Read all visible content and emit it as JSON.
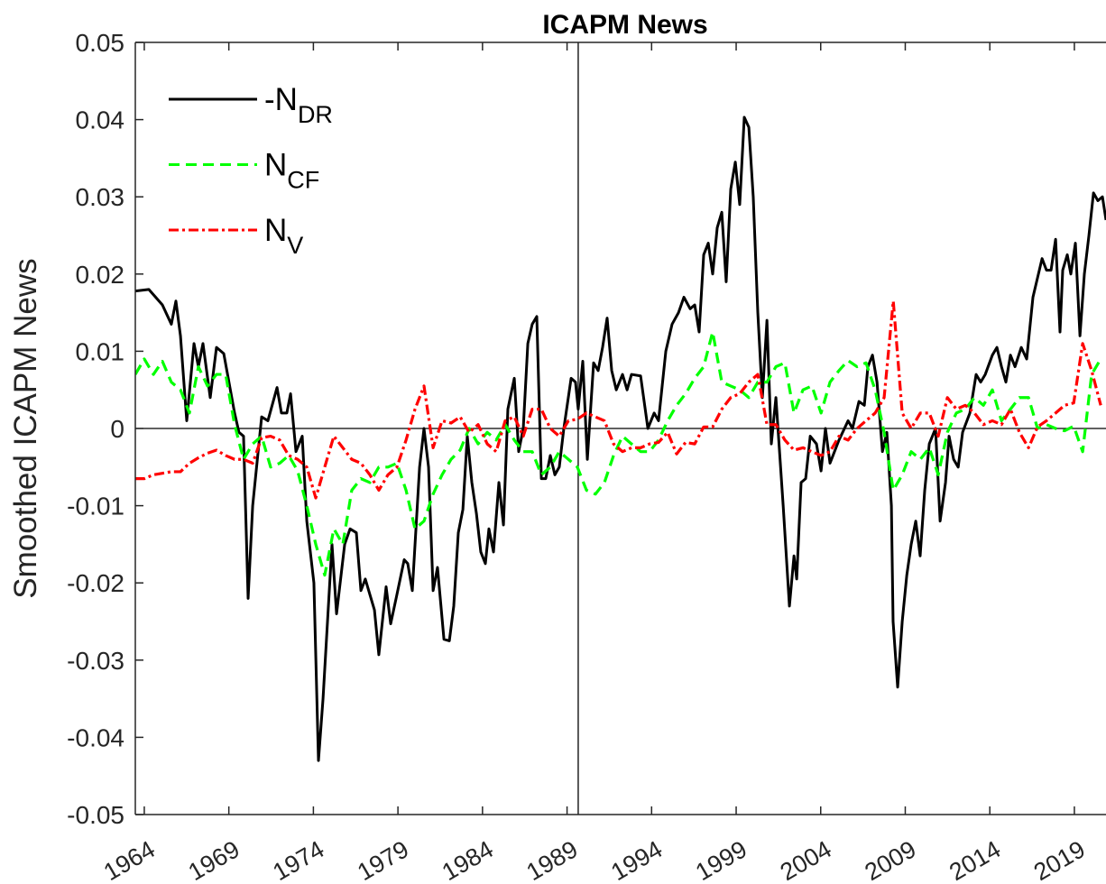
{
  "chart_data": {
    "type": "line",
    "title": "ICAPM News",
    "y_label": "Smoothed ICAPM News",
    "xlim": [
      1963.47,
      2020.87
    ],
    "xticks": [
      1964,
      1969,
      1974,
      1979,
      1984,
      1989,
      1994,
      1999,
      2004,
      2009,
      2014,
      2019
    ],
    "ylim": [
      -0.05,
      0.05
    ],
    "yticks": [
      -0.05,
      -0.04,
      -0.03,
      -0.02,
      -0.01,
      0,
      0.01,
      0.02,
      0.03,
      0.04,
      0.05
    ],
    "reference_x": 1989.66,
    "legend": "upper-left",
    "series": [
      {
        "name": "-N",
        "subscript": "DR",
        "color": "#000000",
        "style": "solid",
        "x": [
          1963.47,
          1964.27,
          1965.07,
          1965.6,
          1965.87,
          1966.14,
          1966.51,
          1966.94,
          1967.2,
          1967.47,
          1967.9,
          1968.27,
          1968.7,
          1969.34,
          1969.6,
          1969.87,
          1970.14,
          1970.41,
          1970.94,
          1971.31,
          1971.85,
          1972.11,
          1972.43,
          1972.65,
          1972.97,
          1973.34,
          1973.61,
          1974.03,
          1974.3,
          1974.57,
          1975.1,
          1975.37,
          1975.85,
          1976.17,
          1976.54,
          1976.81,
          1977.07,
          1977.61,
          1977.87,
          1978.3,
          1978.57,
          1978.94,
          1979.37,
          1979.58,
          1979.85,
          1980.28,
          1980.54,
          1980.81,
          1981.08,
          1981.34,
          1981.72,
          1982.04,
          1982.3,
          1982.57,
          1982.84,
          1983.1,
          1983.37,
          1983.64,
          1983.9,
          1984.17,
          1984.38,
          1984.65,
          1984.97,
          1985.24,
          1985.5,
          1985.88,
          1986.14,
          1986.41,
          1986.68,
          1986.94,
          1987.21,
          1987.48,
          1987.74,
          1988.01,
          1988.28,
          1988.54,
          1988.81,
          1989.24,
          1989.5,
          1989.66,
          1989.93,
          1990.2,
          1990.57,
          1990.84,
          1991.1,
          1991.37,
          1991.64,
          1991.91,
          1992.28,
          1992.55,
          1992.81,
          1993.35,
          1993.78,
          1994.15,
          1994.41,
          1994.84,
          1995.21,
          1995.59,
          1995.91,
          1996.28,
          1996.55,
          1996.81,
          1997.08,
          1997.35,
          1997.61,
          1997.88,
          1998.15,
          1998.41,
          1998.68,
          1998.95,
          1999.21,
          1999.48,
          1999.75,
          2000.01,
          2000.28,
          2000.55,
          2000.82,
          2001.08,
          2001.35,
          2001.78,
          2002.15,
          2002.42,
          2002.58,
          2002.84,
          2003.11,
          2003.38,
          2003.75,
          2004.02,
          2004.28,
          2004.55,
          2005.08,
          2005.62,
          2005.88,
          2006.26,
          2006.58,
          2006.79,
          2007.06,
          2007.33,
          2007.65,
          2007.91,
          2008.18,
          2008.28,
          2008.55,
          2008.82,
          2009.09,
          2009.35,
          2009.62,
          2009.88,
          2010.15,
          2010.42,
          2010.79,
          2011.06,
          2011.38,
          2011.59,
          2011.86,
          2012.13,
          2012.39,
          2012.82,
          2013.19,
          2013.46,
          2013.73,
          2014.15,
          2014.42,
          2014.69,
          2014.95,
          2015.22,
          2015.49,
          2015.86,
          2016.18,
          2016.55,
          2016.82,
          2017.09,
          2017.35,
          2017.62,
          2017.89,
          2018.15,
          2018.31,
          2018.58,
          2018.79,
          2019.06,
          2019.33,
          2019.59,
          2019.86,
          2020.13,
          2020.39,
          2020.66,
          2020.87
        ],
        "values": [
          0.0178,
          0.018,
          0.016,
          0.0135,
          0.0165,
          0.012,
          0.001,
          0.011,
          0.008,
          0.011,
          0.004,
          0.0105,
          0.0097,
          0.002,
          -0.0005,
          -0.001,
          -0.022,
          -0.01,
          0.0015,
          0.001,
          0.0053,
          0.002,
          0.002,
          0.0045,
          -0.003,
          -0.001,
          -0.012,
          -0.02,
          -0.043,
          -0.035,
          -0.015,
          -0.024,
          -0.015,
          -0.013,
          -0.0135,
          -0.021,
          -0.0195,
          -0.0235,
          -0.0293,
          -0.0205,
          -0.0253,
          -0.0215,
          -0.017,
          -0.0175,
          -0.021,
          -0.005,
          0,
          -0.005,
          -0.021,
          -0.018,
          -0.0273,
          -0.0275,
          -0.023,
          -0.0135,
          -0.0105,
          -0.001,
          -0.007,
          -0.011,
          -0.016,
          -0.0175,
          -0.013,
          -0.016,
          -0.007,
          -0.0125,
          0.0025,
          0.0065,
          -0.003,
          0,
          0.011,
          0.0135,
          0.0145,
          -0.0065,
          -0.0065,
          -0.0035,
          -0.006,
          -0.005,
          0,
          0.0065,
          0.006,
          0.0025,
          0.0087,
          -0.004,
          0.0085,
          0.0075,
          0.0105,
          0.0143,
          0.0075,
          0.005,
          0.007,
          0.005,
          0.007,
          0.0068,
          0,
          0.002,
          0.001,
          0.01,
          0.0135,
          0.015,
          0.017,
          0.0155,
          0.016,
          0.0125,
          0.0225,
          0.024,
          0.02,
          0.026,
          0.028,
          0.019,
          0.031,
          0.0345,
          0.029,
          0.0403,
          0.039,
          0.03,
          0.015,
          0.004,
          0.014,
          -0.002,
          0.004,
          -0.01,
          -0.023,
          -0.0165,
          -0.0195,
          -0.007,
          -0.0065,
          -0.001,
          -0.002,
          -0.0055,
          0,
          -0.0045,
          -0.0015,
          0.001,
          0,
          0.0035,
          0.003,
          0.008,
          0.0095,
          0.006,
          -0.003,
          -0.0005,
          -0.01,
          -0.025,
          -0.0335,
          -0.025,
          -0.019,
          -0.015,
          -0.012,
          -0.0165,
          -0.008,
          -0.002,
          0,
          -0.012,
          -0.007,
          -0.001,
          -0.004,
          -0.005,
          -0.0005,
          0.002,
          0.007,
          0.006,
          0.007,
          0.0095,
          0.0105,
          0.008,
          0.006,
          0.0095,
          0.008,
          0.0105,
          0.009,
          0.017,
          0.0195,
          0.022,
          0.0205,
          0.0205,
          0.0245,
          0.0125,
          0.0205,
          0.0225,
          0.02,
          0.024,
          0.012,
          0.02,
          0.025,
          0.0305,
          0.0295,
          0.03,
          0.027
        ]
      },
      {
        "name": "N",
        "subscript": "CF",
        "color": "#00ff00",
        "style": "dashed",
        "x": [
          1963.47,
          1964.0,
          1964.54,
          1965.07,
          1965.6,
          1966.14,
          1966.67,
          1967.2,
          1967.74,
          1968.27,
          1968.81,
          1969.34,
          1969.87,
          1970.41,
          1970.94,
          1971.47,
          1972.01,
          1972.54,
          1973.07,
          1973.61,
          1974.14,
          1974.67,
          1975.21,
          1975.74,
          1976.27,
          1976.81,
          1977.34,
          1977.87,
          1978.41,
          1978.94,
          1979.48,
          1980.01,
          1980.54,
          1981.08,
          1981.61,
          1982.14,
          1982.68,
          1983.21,
          1983.74,
          1984.28,
          1984.81,
          1985.34,
          1985.88,
          1986.41,
          1986.94,
          1987.48,
          1988.01,
          1988.54,
          1989.08,
          1989.61,
          1990.15,
          1990.68,
          1991.21,
          1991.75,
          1992.28,
          1992.81,
          1993.35,
          1993.88,
          1994.41,
          1994.95,
          1995.48,
          1996.01,
          1996.55,
          1997.08,
          1997.61,
          1998.15,
          1998.68,
          1999.21,
          1999.75,
          2000.28,
          2000.82,
          2001.35,
          2001.88,
          2002.42,
          2002.95,
          2003.48,
          2004.02,
          2004.55,
          2005.08,
          2005.62,
          2006.15,
          2006.68,
          2007.22,
          2007.75,
          2008.29,
          2008.82,
          2009.35,
          2009.89,
          2010.42,
          2010.95,
          2011.49,
          2012.02,
          2012.55,
          2013.09,
          2013.62,
          2014.15,
          2014.69,
          2015.22,
          2015.75,
          2016.29,
          2016.82,
          2017.35,
          2017.89,
          2018.42,
          2018.96,
          2019.49,
          2020.02,
          2020.56
        ],
        "values": [
          0.007,
          0.009,
          0.007,
          0.0087,
          0.006,
          0.005,
          0.002,
          0.008,
          0.0055,
          0.007,
          0.007,
          0.0005,
          -0.004,
          -0.002,
          -0.001,
          -0.005,
          -0.0045,
          -0.0035,
          -0.0055,
          -0.01,
          -0.015,
          -0.019,
          -0.013,
          -0.015,
          -0.008,
          -0.0065,
          -0.007,
          -0.005,
          -0.005,
          -0.0045,
          -0.008,
          -0.013,
          -0.012,
          -0.0085,
          -0.006,
          -0.004,
          -0.0028,
          0,
          -0.002,
          -0.0005,
          -0.0015,
          0.0005,
          -0.0015,
          -0.003,
          -0.003,
          -0.006,
          -0.005,
          -0.003,
          -0.004,
          -0.005,
          -0.008,
          -0.0085,
          -0.007,
          -0.0035,
          -0.001,
          -0.002,
          -0.003,
          -0.003,
          -0.0015,
          0.001,
          0.003,
          0.0045,
          0.0065,
          0.008,
          0.0125,
          0.006,
          0.0055,
          0.005,
          0.004,
          0.006,
          0.006,
          0.008,
          0.0085,
          0.002,
          0.005,
          0.0055,
          0.002,
          0.006,
          0.0075,
          0.0088,
          0.008,
          0.0085,
          0.005,
          -0.0005,
          -0.008,
          -0.006,
          -0.003,
          -0.004,
          -0.0025,
          -0.006,
          -0.0005,
          0.002,
          0.0025,
          0.004,
          0.003,
          0.005,
          0.001,
          0.0025,
          0.004,
          0.004,
          0,
          0.0005,
          0,
          -0.0003,
          0.0003,
          -0.003,
          0.007,
          0.009
        ]
      },
      {
        "name": "N",
        "subscript": "V",
        "color": "#ff0000",
        "style": "dashdot",
        "x": [
          1963.47,
          1964.0,
          1964.54,
          1965.07,
          1965.6,
          1966.14,
          1966.67,
          1967.2,
          1967.74,
          1968.27,
          1968.81,
          1969.34,
          1969.87,
          1970.41,
          1970.94,
          1971.47,
          1972.01,
          1972.54,
          1973.07,
          1973.61,
          1974.14,
          1974.67,
          1975.21,
          1975.74,
          1976.27,
          1976.81,
          1977.34,
          1977.87,
          1978.41,
          1978.94,
          1979.48,
          1980.01,
          1980.54,
          1981.08,
          1981.61,
          1982.14,
          1982.68,
          1983.21,
          1983.74,
          1984.28,
          1984.81,
          1985.34,
          1985.88,
          1986.41,
          1986.94,
          1987.48,
          1988.01,
          1988.54,
          1989.08,
          1989.61,
          1990.15,
          1990.68,
          1991.21,
          1991.75,
          1992.28,
          1992.81,
          1993.35,
          1993.88,
          1994.41,
          1994.95,
          1995.48,
          1996.01,
          1996.55,
          1997.08,
          1997.61,
          1998.15,
          1998.68,
          1999.21,
          1999.75,
          2000.28,
          2000.82,
          2001.35,
          2001.88,
          2002.42,
          2002.95,
          2003.48,
          2004.02,
          2004.55,
          2005.08,
          2005.62,
          2006.15,
          2006.68,
          2007.22,
          2007.75,
          2008.29,
          2008.82,
          2009.35,
          2009.89,
          2010.42,
          2010.95,
          2011.49,
          2012.02,
          2012.55,
          2013.09,
          2013.62,
          2014.15,
          2014.69,
          2015.22,
          2015.75,
          2016.29,
          2016.82,
          2017.35,
          2017.89,
          2018.42,
          2018.96,
          2019.49,
          2020.02,
          2020.56
        ],
        "values": [
          -0.0065,
          -0.0065,
          -0.006,
          -0.0058,
          -0.0056,
          -0.0056,
          -0.0045,
          -0.0038,
          -0.0032,
          -0.0028,
          -0.0035,
          -0.004,
          -0.004,
          -0.0045,
          -0.0012,
          -0.001,
          -0.0015,
          -0.0035,
          -0.004,
          -0.005,
          -0.009,
          -0.005,
          -0.001,
          -0.0025,
          -0.004,
          -0.0045,
          -0.006,
          -0.008,
          -0.006,
          -0.005,
          -0.0015,
          0.0025,
          0.0055,
          -0.0025,
          0.001,
          0.0007,
          0.0015,
          -0.0005,
          0.0005,
          -0.002,
          -0.003,
          0.001,
          0.0015,
          -0.001,
          0.0025,
          0.0025,
          0,
          -0.001,
          0.001,
          0.0012,
          0.002,
          0.0015,
          0.001,
          -0.002,
          -0.003,
          -0.0025,
          -0.0025,
          -0.002,
          -0.0018,
          -0.0005,
          -0.0033,
          -0.0018,
          -0.002,
          0.0002,
          0.0002,
          0.0025,
          0.004,
          0.0045,
          0.006,
          0.007,
          0.0005,
          0.0005,
          -0.0015,
          -0.0028,
          -0.0025,
          -0.003,
          -0.0035,
          -0.003,
          -0.001,
          -0.0015,
          0,
          0.001,
          0.002,
          0.004,
          0.0165,
          0.002,
          0,
          0.002,
          0.002,
          -0.001,
          0.004,
          0.0025,
          0.003,
          0.002,
          0.0005,
          0.001,
          0.0005,
          0.0025,
          -0.0005,
          -0.0025,
          0.0002,
          0.001,
          0.002,
          0.003,
          0.0033,
          0.011,
          0.0075,
          0.003
        ]
      }
    ]
  }
}
